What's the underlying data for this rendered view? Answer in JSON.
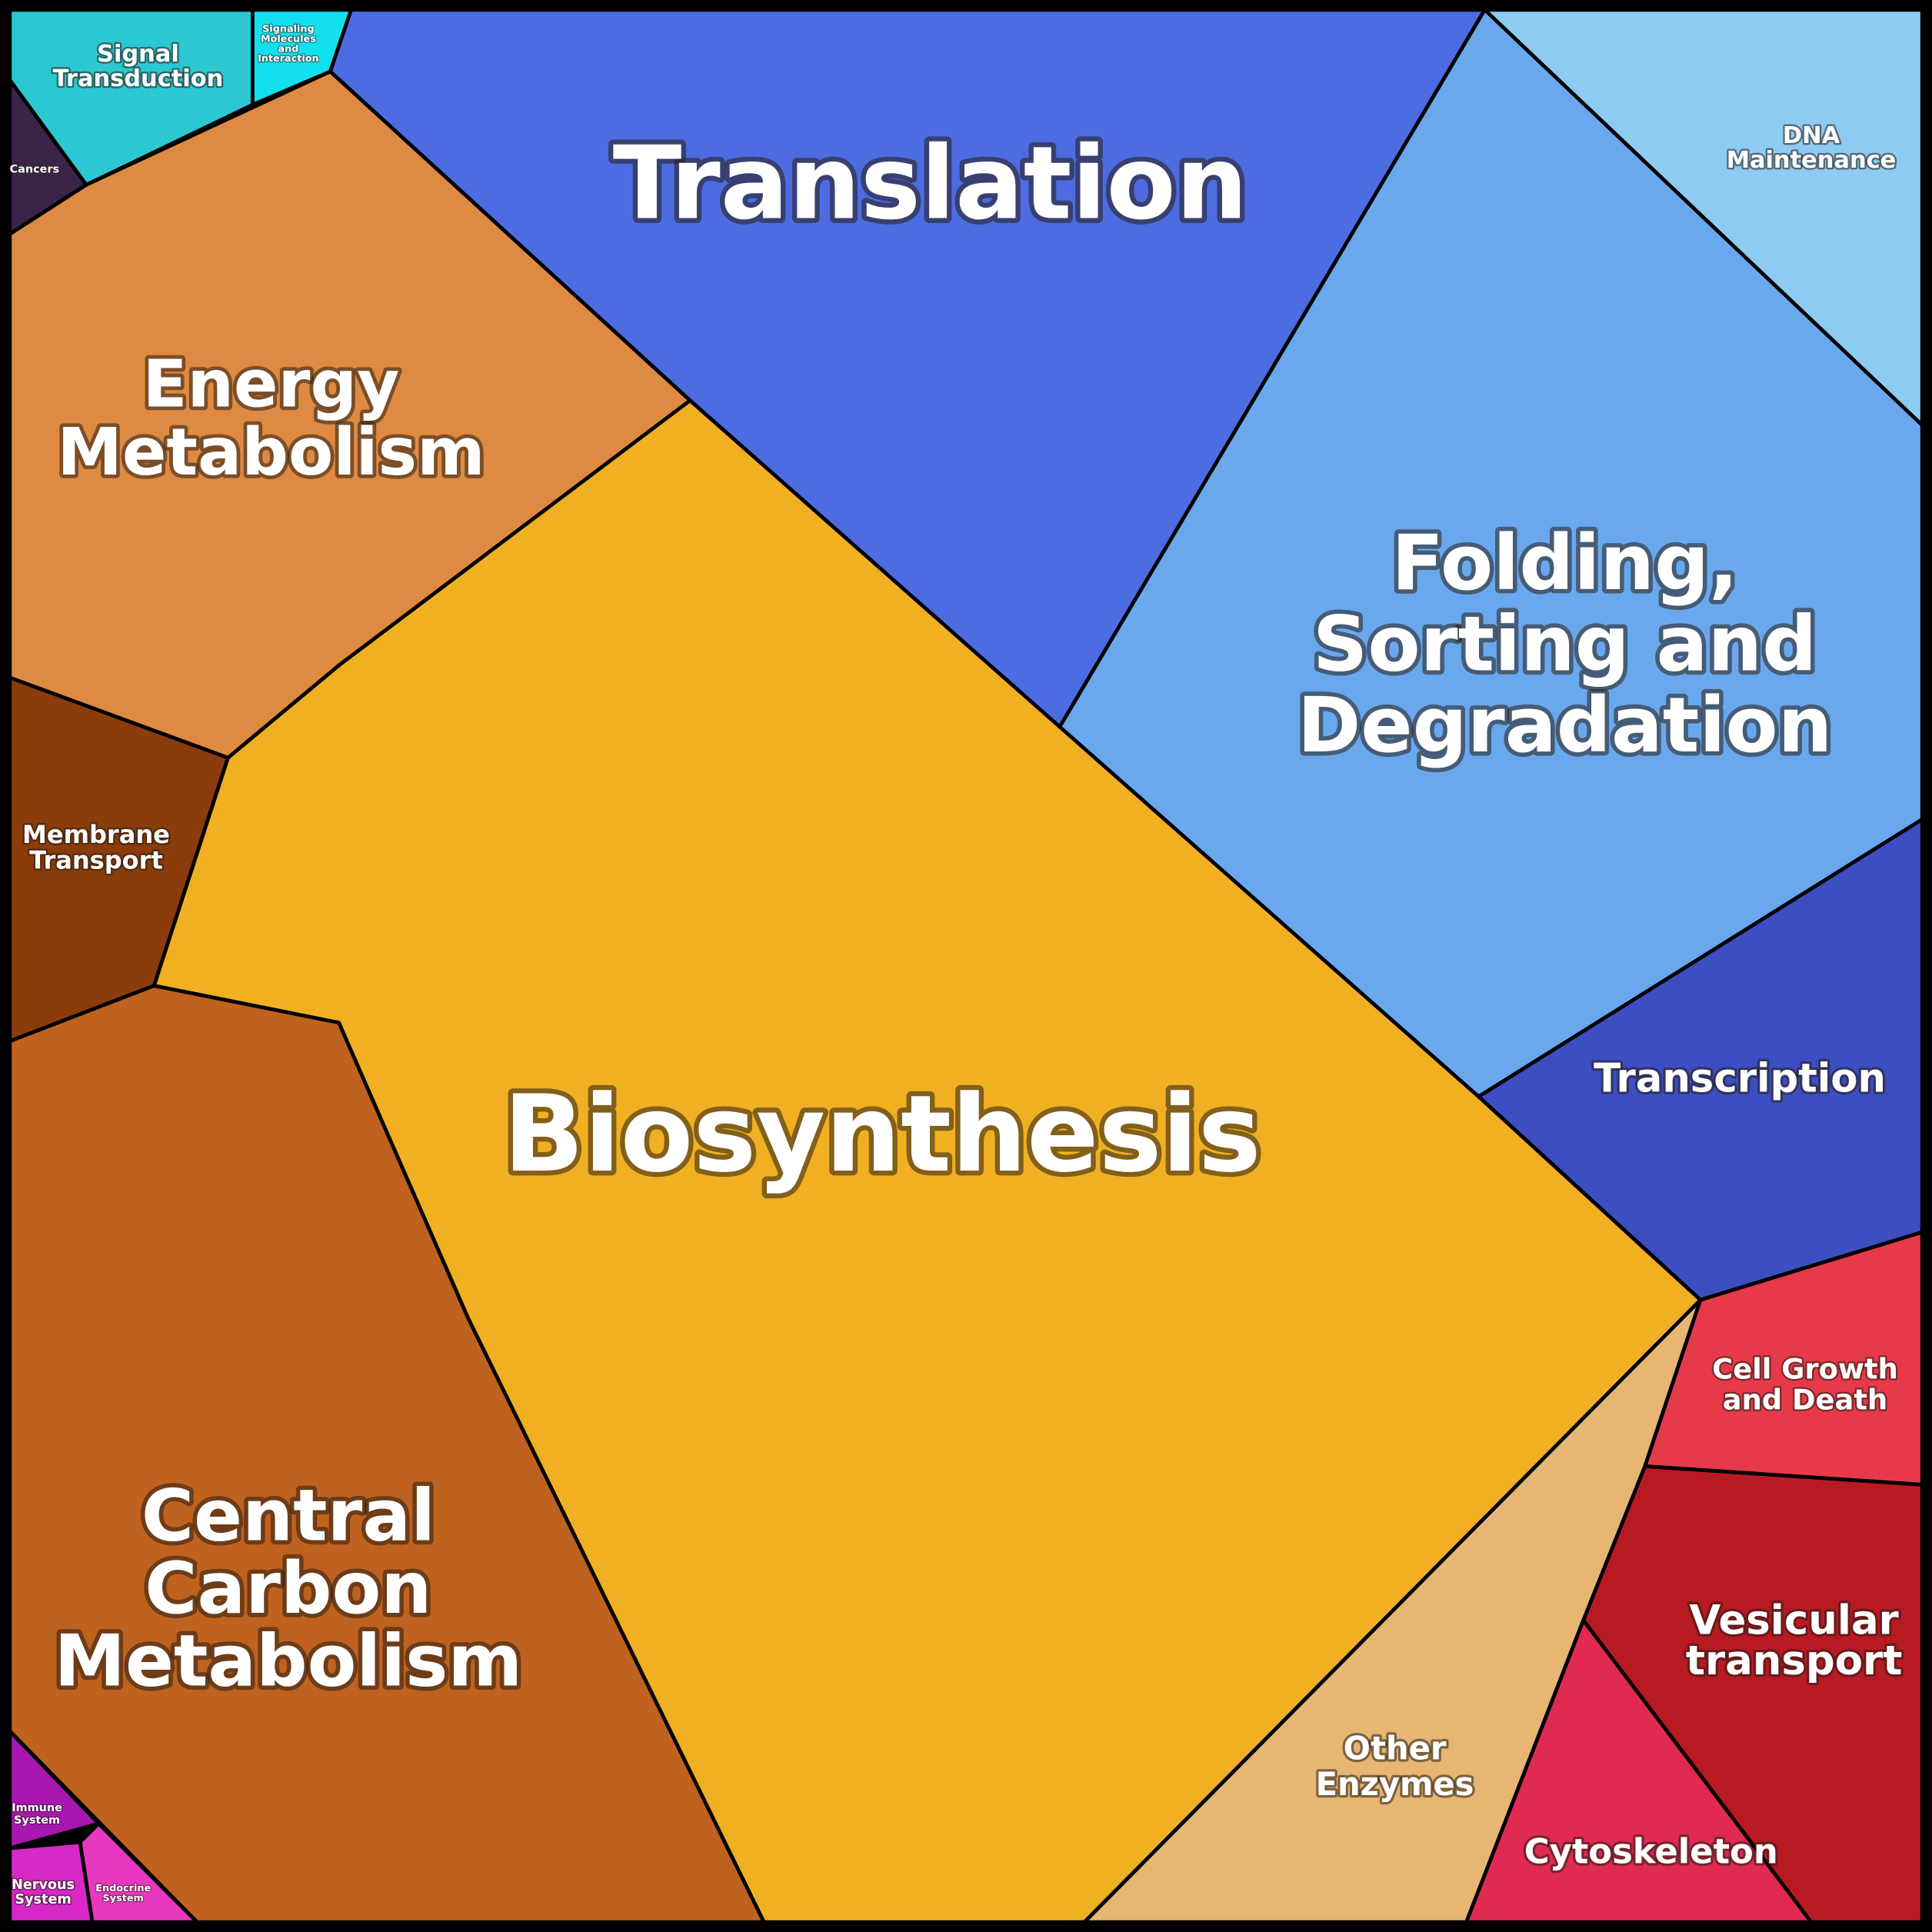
{
  "regions": [
    {
      "lines": [
        "Signal",
        "Transduction"
      ]
    },
    {
      "lines": [
        "Signaling",
        "Molecules",
        "and",
        "Interaction"
      ]
    },
    {
      "lines": [
        "Cancers"
      ]
    },
    {
      "lines": [
        "Translation"
      ]
    },
    {
      "lines": [
        "DNA",
        "Maintenance"
      ]
    },
    {
      "lines": [
        "Folding,",
        "Sorting and",
        "Degradation"
      ]
    },
    {
      "lines": [
        "Transcription"
      ]
    },
    {
      "lines": [
        "Cell Growth",
        "and Death"
      ]
    },
    {
      "lines": [
        "Vesicular",
        "transport"
      ]
    },
    {
      "lines": [
        "Cytoskeleton"
      ]
    },
    {
      "lines": [
        "Other",
        "Enzymes"
      ]
    },
    {
      "lines": [
        "Biosynthesis"
      ]
    },
    {
      "lines": [
        "Energy",
        "Metabolism"
      ]
    },
    {
      "lines": [
        "Membrane",
        "Transport"
      ]
    },
    {
      "lines": [
        "Central",
        "Carbon",
        "Metabolism"
      ]
    },
    {
      "lines": [
        "Immune",
        "System"
      ]
    },
    {
      "lines": [
        "Nervous",
        "System"
      ]
    },
    {
      "lines": [
        "Endocrine",
        "System"
      ]
    }
  ]
}
